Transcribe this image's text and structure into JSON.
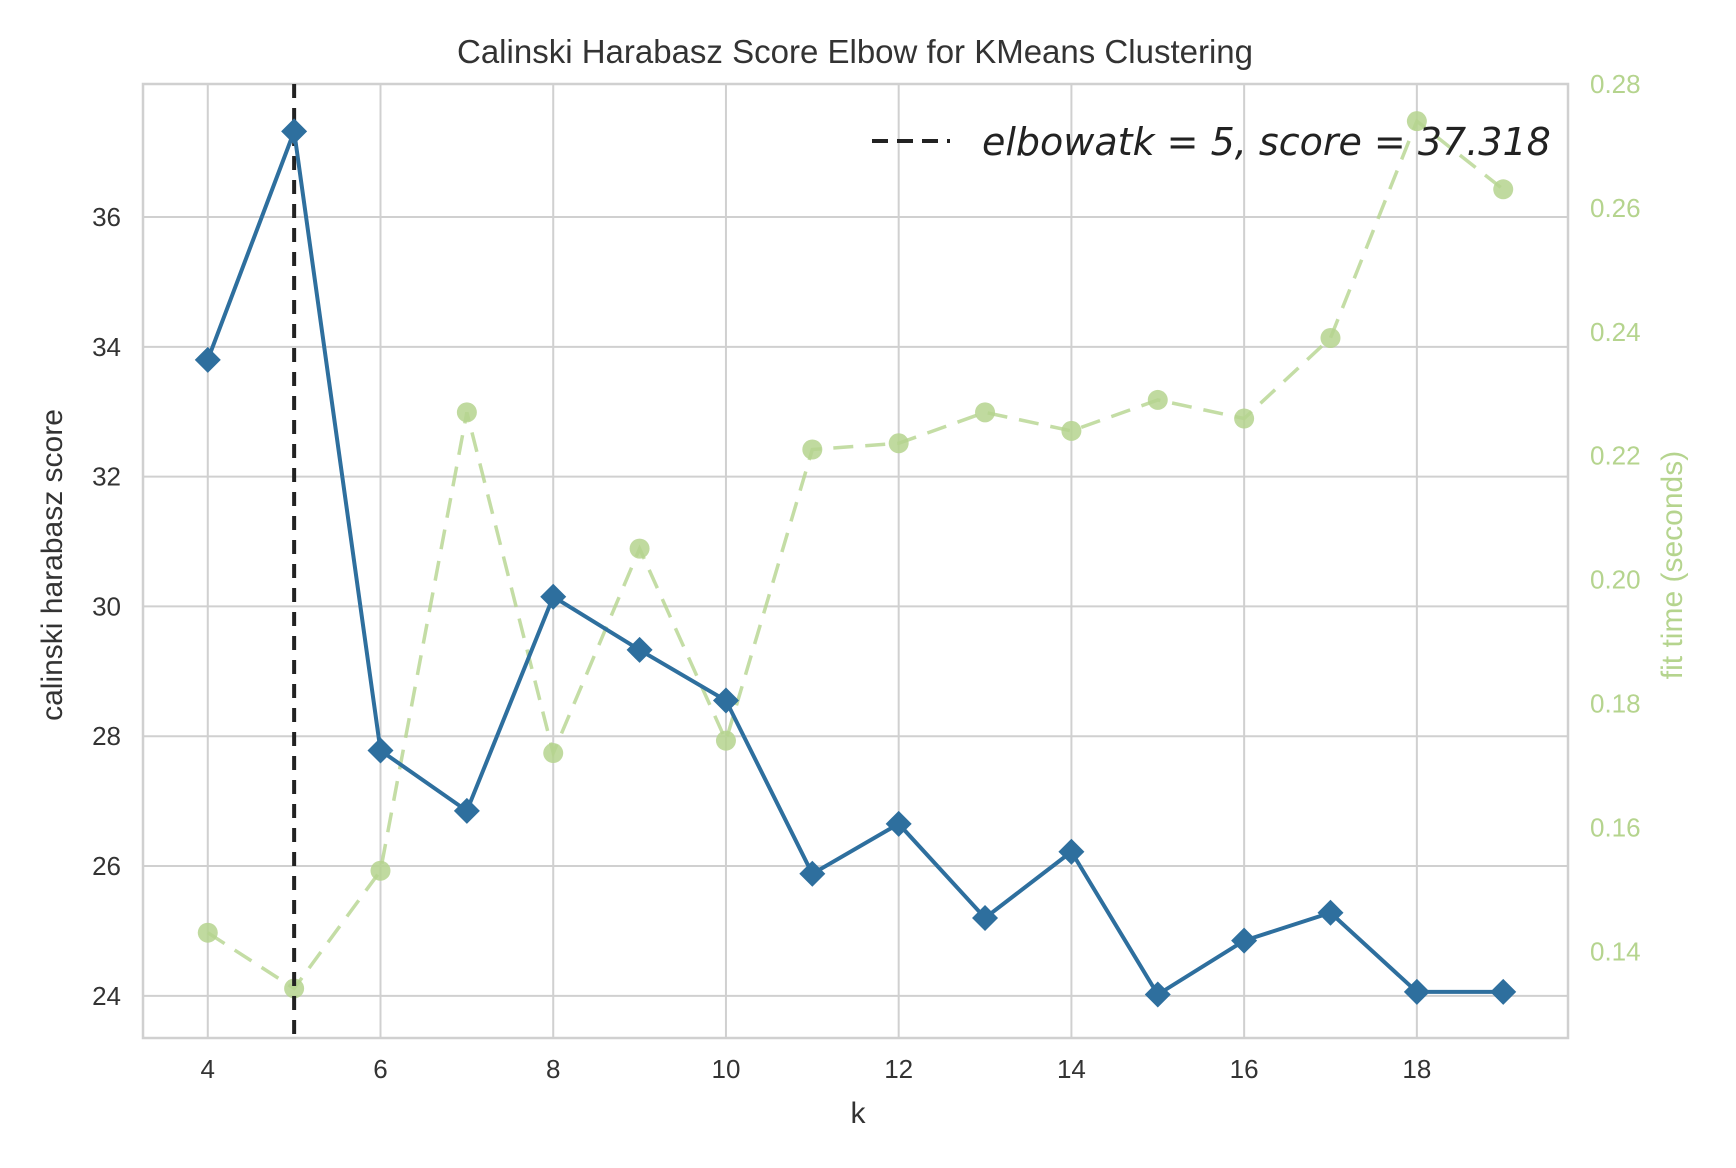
{
  "chart_data": {
    "type": "line",
    "title": "Calinski Harabasz Score Elbow for KMeans Clustering",
    "xlabel": "k",
    "ylabel": "calinski harabasz score",
    "y2label": "fit time (seconds)",
    "xlim": [
      3.25,
      19.75
    ],
    "ylim": [
      23.35,
      38.05
    ],
    "y2lim": [
      0.126,
      0.28
    ],
    "x_ticks": [
      4,
      6,
      8,
      10,
      12,
      14,
      16,
      18
    ],
    "y_ticks": [
      24,
      26,
      28,
      30,
      32,
      34,
      36
    ],
    "y2_ticks": [
      0.14,
      0.16,
      0.18,
      0.2,
      0.22,
      0.24,
      0.26,
      0.28
    ],
    "y_tick_labels": [
      "24",
      "26",
      "28",
      "30",
      "32",
      "34",
      "36"
    ],
    "y2_tick_labels": [
      "0.14",
      "0.16",
      "0.18",
      "0.20",
      "0.22",
      "0.24",
      "0.26",
      "0.28"
    ],
    "x": [
      4,
      5,
      6,
      7,
      8,
      9,
      10,
      11,
      12,
      13,
      14,
      15,
      16,
      17,
      18,
      19
    ],
    "series": [
      {
        "axis": "left",
        "color": "#2e6f9e",
        "style": "solid",
        "marker": "diamond",
        "values": [
          33.8,
          37.32,
          27.78,
          26.85,
          30.15,
          29.33,
          28.55,
          25.88,
          26.65,
          25.2,
          26.22,
          24.02,
          24.85,
          25.28,
          24.06,
          24.06
        ]
      },
      {
        "axis": "right",
        "color": "#b5d48e",
        "style": "dashed",
        "marker": "circle",
        "values": [
          0.143,
          0.134,
          0.153,
          0.227,
          0.172,
          0.205,
          0.174,
          0.221,
          0.222,
          0.227,
          0.224,
          0.229,
          0.226,
          0.239,
          0.274,
          0.263
        ]
      }
    ],
    "elbow": {
      "k": 5,
      "color": "#222222"
    },
    "legend": {
      "position": "top-right",
      "label": "elbowatk = 5, score = 37.318"
    },
    "grid": true
  }
}
